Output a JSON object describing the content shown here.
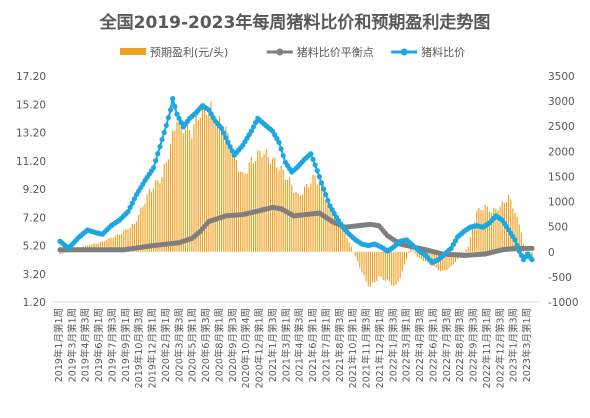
{
  "chart_data": {
    "type": "bar+line",
    "title": "全国2019-2023年每周猪料比价和预期盈利走势图",
    "legend": {
      "placement": "top",
      "items": [
        {
          "name": "预期盈利(元/头)",
          "color": "#F0A020",
          "kind": "bar"
        },
        {
          "name": "猪料比价平衡点",
          "color": "#7F7F7F",
          "kind": "line-marker"
        },
        {
          "name": "猪料比价",
          "color": "#1CA7E0",
          "kind": "line-marker"
        }
      ]
    },
    "left_axis": {
      "ticks": [
        "17.20",
        "15.20",
        "13.20",
        "11.20",
        "9.20",
        "7.20",
        "5.20",
        "3.20",
        "1.20"
      ],
      "min": 1.2,
      "max": 17.2
    },
    "right_axis": {
      "ticks": [
        "3500",
        "3000",
        "2500",
        "2000",
        "1500",
        "1000",
        "500",
        "0",
        "-500",
        "-1000"
      ],
      "min": -1000,
      "max": 3500
    },
    "x_labels": [
      "2019年1月第1周",
      "2019年3月第1周",
      "2019年4月第3周",
      "2019年6月第1周",
      "2019年7月第3周",
      "2019年9月第1周",
      "2019年10月第3周",
      "2019年12月第1周",
      "2020年2月第1周",
      "2020年3月第3周",
      "2020年5月第1周",
      "2020年6月第3周",
      "2020年8月第1周",
      "2020年9月第3周",
      "2020年10月第4周",
      "2020年12月第1周",
      "2021年1月第3周",
      "2021年3月第1周",
      "2021年4月第3周",
      "2021年6月第1周",
      "2021年7月第1周",
      "2021年8月第3周",
      "2021年10月第1周",
      "2021年11月第3周",
      "2021年12月第1周",
      "2022年1月第3周",
      "2022年3月第1周",
      "2022年4月第3周",
      "2022年6月第1周",
      "2022年7月第3周",
      "2022年8月第3周",
      "2022年9月第3周",
      "2022年11月第1周",
      "2022年12月第3周",
      "2023年1月第3周",
      "2023年3月第1周"
    ],
    "x_label_fmt": "{year}年{month}月第{week}周",
    "num_points": 223,
    "profit_keyframes": [
      [
        0,
        -50
      ],
      [
        10,
        100
      ],
      [
        20,
        200
      ],
      [
        28,
        350
      ],
      [
        35,
        550
      ],
      [
        42,
        1200
      ],
      [
        48,
        1500
      ],
      [
        52,
        2100
      ],
      [
        55,
        2700
      ],
      [
        58,
        2500
      ],
      [
        62,
        2400
      ],
      [
        66,
        2800
      ],
      [
        70,
        2900
      ],
      [
        74,
        2600
      ],
      [
        78,
        2400
      ],
      [
        82,
        1900
      ],
      [
        86,
        1500
      ],
      [
        90,
        1800
      ],
      [
        95,
        2000
      ],
      [
        98,
        1900
      ],
      [
        103,
        1700
      ],
      [
        108,
        1400
      ],
      [
        112,
        1100
      ],
      [
        116,
        1300
      ],
      [
        120,
        1500
      ],
      [
        124,
        1200
      ],
      [
        128,
        800
      ],
      [
        132,
        500
      ],
      [
        136,
        200
      ],
      [
        140,
        -200
      ],
      [
        144,
        -600
      ],
      [
        146,
        -700
      ],
      [
        150,
        -500
      ],
      [
        155,
        -600
      ],
      [
        158,
        -700
      ],
      [
        161,
        -400
      ],
      [
        165,
        100
      ],
      [
        168,
        -100
      ],
      [
        172,
        -200
      ],
      [
        176,
        -300
      ],
      [
        180,
        -400
      ],
      [
        184,
        -300
      ],
      [
        188,
        -100
      ],
      [
        192,
        100
      ],
      [
        196,
        800
      ],
      [
        200,
        900
      ],
      [
        203,
        800
      ],
      [
        207,
        900
      ],
      [
        211,
        1100
      ],
      [
        214,
        800
      ],
      [
        217,
        400
      ],
      [
        219,
        -100
      ],
      [
        222,
        -200
      ]
    ],
    "ratio_keyframes": [
      [
        0,
        5.5
      ],
      [
        4,
        5.0
      ],
      [
        9,
        5.8
      ],
      [
        13,
        6.3
      ],
      [
        17,
        6.1
      ],
      [
        20,
        6.0
      ],
      [
        24,
        6.6
      ],
      [
        28,
        7.0
      ],
      [
        32,
        7.6
      ],
      [
        36,
        8.8
      ],
      [
        40,
        9.8
      ],
      [
        44,
        10.7
      ],
      [
        47,
        12.2
      ],
      [
        50,
        13.7
      ],
      [
        52,
        14.8
      ],
      [
        53,
        15.6
      ],
      [
        55,
        14.5
      ],
      [
        58,
        13.6
      ],
      [
        61,
        14.2
      ],
      [
        64,
        14.6
      ],
      [
        67,
        15.1
      ],
      [
        70,
        14.8
      ],
      [
        73,
        14.0
      ],
      [
        76,
        13.5
      ],
      [
        79,
        12.5
      ],
      [
        82,
        11.6
      ],
      [
        86,
        12.3
      ],
      [
        90,
        13.3
      ],
      [
        93,
        14.2
      ],
      [
        96,
        13.8
      ],
      [
        100,
        13.3
      ],
      [
        103,
        12.5
      ],
      [
        106,
        11.1
      ],
      [
        109,
        10.4
      ],
      [
        112,
        10.8
      ],
      [
        115,
        11.3
      ],
      [
        118,
        11.7
      ],
      [
        121,
        10.5
      ],
      [
        124,
        9.2
      ],
      [
        127,
        8.0
      ],
      [
        130,
        7.2
      ],
      [
        133,
        6.5
      ],
      [
        136,
        6.0
      ],
      [
        139,
        5.6
      ],
      [
        142,
        5.3
      ],
      [
        145,
        5.2
      ],
      [
        148,
        5.3
      ],
      [
        151,
        5.1
      ],
      [
        154,
        4.8
      ],
      [
        157,
        5.1
      ],
      [
        160,
        5.5
      ],
      [
        163,
        5.6
      ],
      [
        166,
        5.2
      ],
      [
        169,
        4.8
      ],
      [
        172,
        4.5
      ],
      [
        175,
        4.0
      ],
      [
        178,
        4.2
      ],
      [
        181,
        4.6
      ],
      [
        184,
        5.0
      ],
      [
        187,
        5.8
      ],
      [
        190,
        6.2
      ],
      [
        193,
        6.5
      ],
      [
        196,
        6.6
      ],
      [
        199,
        6.5
      ],
      [
        202,
        6.8
      ],
      [
        205,
        7.3
      ],
      [
        208,
        7.0
      ],
      [
        211,
        6.3
      ],
      [
        214,
        5.6
      ],
      [
        216,
        4.8
      ],
      [
        218,
        4.2
      ],
      [
        220,
        4.6
      ],
      [
        222,
        4.2
      ]
    ],
    "breakeven_keyframes": [
      [
        0,
        4.9
      ],
      [
        30,
        4.9
      ],
      [
        44,
        5.2
      ],
      [
        56,
        5.4
      ],
      [
        62,
        5.7
      ],
      [
        66,
        6.2
      ],
      [
        70,
        6.9
      ],
      [
        78,
        7.3
      ],
      [
        86,
        7.4
      ],
      [
        92,
        7.6
      ],
      [
        100,
        7.9
      ],
      [
        104,
        7.8
      ],
      [
        110,
        7.3
      ],
      [
        116,
        7.4
      ],
      [
        122,
        7.5
      ],
      [
        128,
        6.9
      ],
      [
        134,
        6.5
      ],
      [
        140,
        6.6
      ],
      [
        146,
        6.7
      ],
      [
        150,
        6.6
      ],
      [
        154,
        5.9
      ],
      [
        160,
        5.3
      ],
      [
        166,
        5.1
      ],
      [
        172,
        4.9
      ],
      [
        180,
        4.6
      ],
      [
        190,
        4.5
      ],
      [
        200,
        4.6
      ],
      [
        208,
        4.9
      ],
      [
        214,
        5.0
      ],
      [
        222,
        5.0
      ]
    ],
    "series_colors": {
      "bar": "#F0A020",
      "breakeven": "#7F7F7F",
      "ratio": "#1CA7E0"
    }
  }
}
